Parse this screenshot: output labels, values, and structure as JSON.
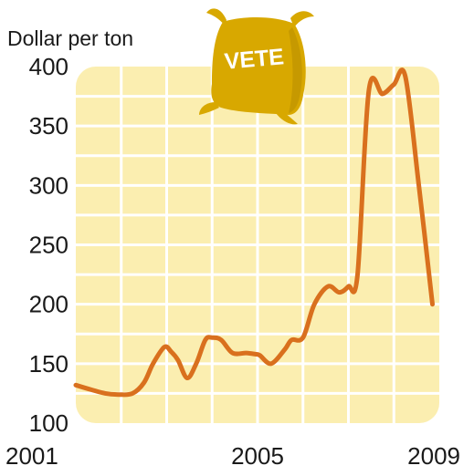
{
  "chart_data": {
    "type": "line",
    "unit_label": "Dollar per ton",
    "badge_text": "VETE",
    "y_ticks": [
      "400",
      "350",
      "300",
      "250",
      "200",
      "150",
      "100"
    ],
    "y_tick_values": [
      400,
      350,
      300,
      250,
      200,
      150,
      100
    ],
    "x_ticks": [
      "2001",
      "2005",
      "2009"
    ],
    "x_tick_values": [
      2001,
      2005,
      2009
    ],
    "ylim": [
      100,
      400
    ],
    "xlim": [
      2001,
      2009
    ],
    "grid": true,
    "colors": {
      "line": "#d9701e",
      "plot_bg": "#fbeeb0",
      "grid": "#ffffff",
      "bag": "#d8a800",
      "bag_dark": "#b88d00",
      "badge_text": "#ffffff"
    },
    "series": [
      {
        "x": [
          2001.0,
          2001.35,
          2001.65,
          2001.95,
          2002.25,
          2002.5,
          2002.7,
          2002.95,
          2003.1,
          2003.25,
          2003.45,
          2003.65,
          2003.85,
          2004.0,
          2004.2,
          2004.45,
          2004.75,
          2004.95,
          2005.05,
          2005.3,
          2005.6,
          2005.75,
          2006.0,
          2006.25,
          2006.55,
          2006.8,
          2007.0,
          2007.2,
          2007.45,
          2007.75,
          2008.0,
          2008.25,
          2008.55,
          2008.85
        ],
        "y": [
          132,
          128,
          125,
          124,
          125,
          134,
          150,
          164,
          160,
          153,
          138,
          150,
          170,
          172,
          170,
          159,
          159,
          158,
          157,
          150,
          162,
          170,
          172,
          200,
          215,
          210,
          215,
          225,
          380,
          377,
          385,
          392,
          300,
          200
        ]
      }
    ]
  }
}
